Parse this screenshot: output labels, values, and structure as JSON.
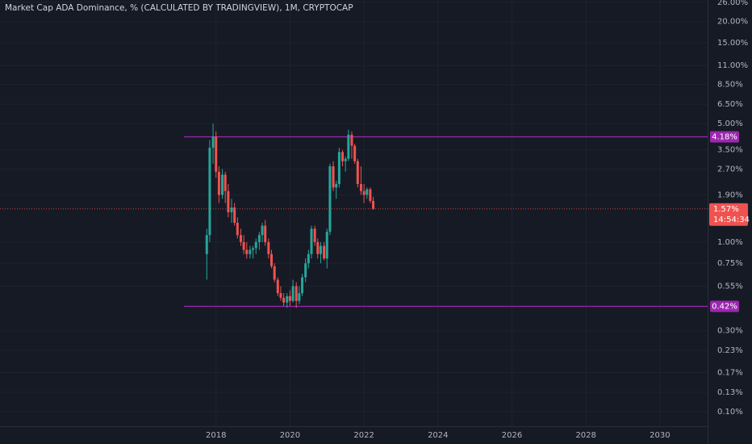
{
  "chart_data": {
    "type": "candlestick",
    "title": "Market Cap ADA Dominance, % (CALCULATED BY TRADINGVIEW), 1M, CRYPTOCAP",
    "log_scale": true,
    "grid": true,
    "up_color": "#26a69a",
    "down_color": "#ef5350",
    "level_color": "#9c27b0",
    "x": [
      2017.75,
      2017.83,
      2017.92,
      2018,
      2018.08,
      2018.17,
      2018.25,
      2018.33,
      2018.42,
      2018.5,
      2018.58,
      2018.67,
      2018.75,
      2018.83,
      2018.92,
      2019,
      2019.08,
      2019.17,
      2019.25,
      2019.33,
      2019.42,
      2019.5,
      2019.58,
      2019.67,
      2019.75,
      2019.83,
      2019.92,
      2020,
      2020.08,
      2020.17,
      2020.25,
      2020.33,
      2020.42,
      2020.5,
      2020.58,
      2020.67,
      2020.75,
      2020.83,
      2020.92,
      2021,
      2021.08,
      2021.17,
      2021.25,
      2021.33,
      2021.42,
      2021.5,
      2021.58,
      2021.67,
      2021.75,
      2021.83,
      2021.92,
      2022,
      2022.08,
      2022.17,
      2022.25
    ],
    "open": [
      0.85,
      1.1,
      3.6,
      4.2,
      2.6,
      1.9,
      2.5,
      2.0,
      1.5,
      1.6,
      1.3,
      1.1,
      1.0,
      0.9,
      0.85,
      0.9,
      0.92,
      1.0,
      1.1,
      1.25,
      1.0,
      0.85,
      0.72,
      0.6,
      0.5,
      0.47,
      0.44,
      0.48,
      0.45,
      0.55,
      0.45,
      0.5,
      0.62,
      0.75,
      0.85,
      1.2,
      1.0,
      0.85,
      0.95,
      0.8,
      1.15,
      2.8,
      2.1,
      2.2,
      3.4,
      3.0,
      3.1,
      4.3,
      3.7,
      3.0,
      2.2,
      2.0,
      1.9,
      2.05,
      1.75
    ],
    "high": [
      1.2,
      4.0,
      5.0,
      4.5,
      2.8,
      2.7,
      2.6,
      2.2,
      1.8,
      1.7,
      1.4,
      1.2,
      1.1,
      1.0,
      0.95,
      0.95,
      1.05,
      1.15,
      1.3,
      1.35,
      1.05,
      0.9,
      0.75,
      0.62,
      0.55,
      0.5,
      0.5,
      0.52,
      0.6,
      0.58,
      0.55,
      0.65,
      0.8,
      0.9,
      1.25,
      1.25,
      1.05,
      1.0,
      1.0,
      1.2,
      2.9,
      3.0,
      2.3,
      3.6,
      3.5,
      3.2,
      4.6,
      4.5,
      3.8,
      3.1,
      2.8,
      2.2,
      2.1,
      2.1,
      1.85
    ],
    "low": [
      0.6,
      1.0,
      2.9,
      2.4,
      1.7,
      1.8,
      1.7,
      1.4,
      1.3,
      1.25,
      1.05,
      0.95,
      0.85,
      0.8,
      0.8,
      0.8,
      0.85,
      0.9,
      1.0,
      0.95,
      0.8,
      0.7,
      0.58,
      0.48,
      0.45,
      0.42,
      0.41,
      0.42,
      0.44,
      0.41,
      0.43,
      0.48,
      0.58,
      0.7,
      0.8,
      0.95,
      0.8,
      0.75,
      0.78,
      0.7,
      1.1,
      2.0,
      1.8,
      2.1,
      2.8,
      2.6,
      3.0,
      3.1,
      2.9,
      2.1,
      1.9,
      1.7,
      1.8,
      1.7,
      1.55
    ],
    "close": [
      1.1,
      3.6,
      4.2,
      2.6,
      1.9,
      2.5,
      2.0,
      1.5,
      1.6,
      1.3,
      1.1,
      1.0,
      0.9,
      0.85,
      0.9,
      0.92,
      1.0,
      1.1,
      1.25,
      1.0,
      0.85,
      0.72,
      0.6,
      0.5,
      0.47,
      0.44,
      0.48,
      0.45,
      0.55,
      0.45,
      0.5,
      0.62,
      0.75,
      0.85,
      1.2,
      1.0,
      0.85,
      0.95,
      0.8,
      1.15,
      2.8,
      2.1,
      2.2,
      3.4,
      3.0,
      3.1,
      4.3,
      3.7,
      3.0,
      2.2,
      2.0,
      1.9,
      2.05,
      1.75,
      1.57
    ],
    "xlim": [
      2012.16,
      2031.29
    ],
    "xticks": [
      2018,
      2020,
      2022,
      2024,
      2026,
      2028,
      2030
    ],
    "ylim": [
      0.082,
      26.8
    ],
    "yticks": [
      {
        "value": 26,
        "label": "26.00%"
      },
      {
        "value": 20,
        "label": "20.00%"
      },
      {
        "value": 15,
        "label": "15.00%"
      },
      {
        "value": 11,
        "label": "11.00%"
      },
      {
        "value": 8.5,
        "label": "8.50%"
      },
      {
        "value": 6.5,
        "label": "6.50%"
      },
      {
        "value": 5,
        "label": "5.00%"
      },
      {
        "value": 3.5,
        "label": "3.50%"
      },
      {
        "value": 2.7,
        "label": "2.70%"
      },
      {
        "value": 1.9,
        "label": "1.90%"
      },
      {
        "value": 1,
        "label": "1.00%"
      },
      {
        "value": 0.75,
        "label": "0.75%"
      },
      {
        "value": 0.55,
        "label": "0.55%"
      },
      {
        "value": 0.3,
        "label": "0.30%"
      },
      {
        "value": 0.23,
        "label": "0.23%"
      },
      {
        "value": 0.17,
        "label": "0.17%"
      },
      {
        "value": 0.13,
        "label": "0.13%"
      },
      {
        "value": 0.1,
        "label": "0.10%"
      }
    ],
    "levels": [
      {
        "value": 4.18,
        "label": "4.18%"
      },
      {
        "value": 0.42,
        "label": "0.42%"
      }
    ],
    "last_price": {
      "value": 1.57,
      "label": "1.57%"
    },
    "countdown": "14:54:34"
  }
}
